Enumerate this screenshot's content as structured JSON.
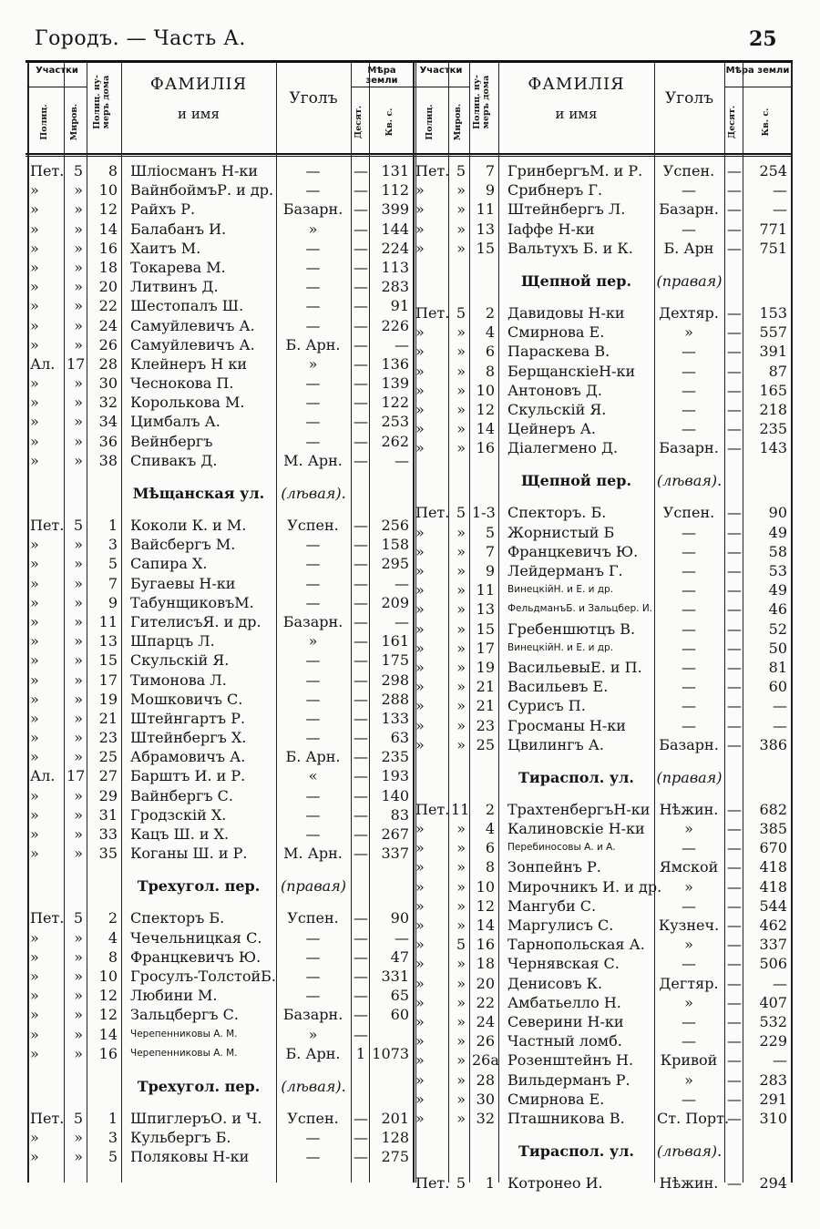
{
  "page": {
    "title": "Городъ. — Часть А.",
    "number": "25"
  },
  "header": {
    "districts": "Участки",
    "police": "Полиц.",
    "court": "Миров.",
    "house_no": "Полиц. ну-\nмеръ дома",
    "name_line1": "ФАМИЛІЯ",
    "name_line2": "и имя",
    "corner": "Уголъ",
    "land": "Мѣра земли",
    "desyat": "Десят.",
    "kv": "Кв. с."
  },
  "left": [
    [
      "Пет.",
      "5",
      "8",
      "Шліосманъ Н-ки",
      "—",
      "—",
      "131"
    ],
    [
      "»",
      "»",
      "10",
      "ВайнбоймъР. и др.",
      "—",
      "—",
      "112"
    ],
    [
      "»",
      "»",
      "12",
      "Райхъ Р.",
      "Базарн.",
      "—",
      "399"
    ],
    [
      "»",
      "»",
      "14",
      "Балабанъ И.",
      "»",
      "—",
      "144"
    ],
    [
      "»",
      "»",
      "16",
      "Хаитъ М.",
      "—",
      "—",
      "224"
    ],
    [
      "»",
      "»",
      "18",
      "Токарева М.",
      "—",
      "—",
      "113"
    ],
    [
      "»",
      "»",
      "20",
      "Литвинъ Д.",
      "—",
      "—",
      "283"
    ],
    [
      "»",
      "»",
      "22",
      "Шестопалъ Ш.",
      "—",
      "—",
      "91"
    ],
    [
      "»",
      "»",
      "24",
      "Самуйлевичъ А.",
      "—",
      "—",
      "226"
    ],
    [
      "»",
      "»",
      "26",
      "Самуйлевичъ А.",
      "Б. Арн.",
      "—",
      "—"
    ],
    [
      "Ал.",
      "17",
      "28",
      "Клейнеръ Н ки",
      "»",
      "—",
      "136"
    ],
    [
      "»",
      "»",
      "30",
      "Чеснокова П.",
      "—",
      "—",
      "139"
    ],
    [
      "»",
      "»",
      "32",
      "Королькова М.",
      "—",
      "—",
      "122"
    ],
    [
      "»",
      "»",
      "34",
      "Цимбалъ А.",
      "—",
      "—",
      "253"
    ],
    [
      "»",
      "»",
      "36",
      "Вейнбергъ",
      "—",
      "—",
      "262"
    ],
    [
      "»",
      "»",
      "38",
      "Спивакъ Д.",
      "М. Арн.",
      "—",
      "—"
    ],
    {
      "street": "Мѣщанская ул.",
      "side": "(лѣвая)."
    },
    [
      "Пет.",
      "5",
      "1",
      "Коколи К. и М.",
      "Успен.",
      "—",
      "256"
    ],
    [
      "»",
      "»",
      "3",
      "Вайсбергъ М.",
      "—",
      "—",
      "158"
    ],
    [
      "»",
      "»",
      "5",
      "Сапира Х.",
      "—",
      "—",
      "295"
    ],
    [
      "»",
      "»",
      "7",
      "Бугаевы Н-ки",
      "—",
      "—",
      "—"
    ],
    [
      "»",
      "»",
      "9",
      "ТабунщиковъМ.",
      "—",
      "—",
      "209"
    ],
    [
      "»",
      "»",
      "11",
      "ГителисъЯ. и др.",
      "Базарн.",
      "—",
      "—"
    ],
    [
      "»",
      "»",
      "13",
      "Шпарцъ Л.",
      "»",
      "—",
      "161"
    ],
    [
      "»",
      "»",
      "15",
      "Скульскій Я.",
      "—",
      "—",
      "175"
    ],
    [
      "»",
      "»",
      "17",
      "Тимонова Л.",
      "—",
      "—",
      "298"
    ],
    [
      "»",
      "»",
      "19",
      "Мошковичъ С.",
      "—",
      "—",
      "288"
    ],
    [
      "»",
      "»",
      "21",
      "Штейнгартъ Р.",
      "—",
      "—",
      "133"
    ],
    [
      "»",
      "»",
      "23",
      "Штейнбергъ Х.",
      "—",
      "—",
      "63"
    ],
    [
      "»",
      "»",
      "25",
      "Абрамовичъ А.",
      "Б. Арн.",
      "—",
      "235"
    ],
    [
      "Ал.",
      "17",
      "27",
      "Барштъ И. и Р.",
      "«",
      "—",
      "193"
    ],
    [
      "»",
      "»",
      "29",
      "Вайнбергъ С.",
      "—",
      "—",
      "140"
    ],
    [
      "»",
      "»",
      "31",
      "Гродзскій Х.",
      "—",
      "—",
      "83"
    ],
    [
      "»",
      "»",
      "33",
      "Кацъ Ш. и Х.",
      "—",
      "—",
      "267"
    ],
    [
      "»",
      "»",
      "35",
      "Коганы Ш. и Р.",
      "М. Арн.",
      "—",
      "337"
    ],
    {
      "street": "Трехугол. пер.",
      "side": "(правая)"
    },
    [
      "Пет.",
      "5",
      "2",
      "Спекторъ Б.",
      "Успен.",
      "—",
      "90"
    ],
    [
      "»",
      "»",
      "4",
      "Чечельницкая С.",
      "—",
      "—",
      "—"
    ],
    [
      "»",
      "»",
      "8",
      "Францкевичъ Ю.",
      "—",
      "—",
      "47"
    ],
    [
      "»",
      "»",
      "10",
      "Гросулъ-ТолстойБ.",
      "—",
      "—",
      "331"
    ],
    [
      "»",
      "»",
      "12",
      "Любини М.",
      "—",
      "—",
      "65"
    ],
    [
      "»",
      "»",
      "12",
      "Зальцбергъ С.",
      "Базарн.",
      "—",
      "60"
    ],
    [
      "»",
      "»",
      "14",
      "Черепенниковы А. М.",
      "»",
      "—",
      ""
    ],
    [
      "»",
      "»",
      "16",
      "Черепенниковы А. М.",
      "Б. Арн.",
      "1",
      "1073"
    ],
    {
      "street": "Трехугол. пер.",
      "side": "(лѣвая)."
    },
    [
      "Пет.",
      "5",
      "1",
      "ШпиглеръО. и Ч.",
      "Успен.",
      "—",
      "201"
    ],
    [
      "»",
      "»",
      "3",
      "Кульбергъ Б.",
      "—",
      "—",
      "128"
    ],
    [
      "»",
      "»",
      "5",
      "Поляковы Н-ки",
      "—",
      "—",
      "275"
    ]
  ],
  "right": [
    [
      "Пет.",
      "5",
      "7",
      "ГринбергъМ. и Р.",
      "Успен.",
      "—",
      "254"
    ],
    [
      "»",
      "»",
      "9",
      "Срибнеръ Г.",
      "—",
      "—",
      "—"
    ],
    [
      "»",
      "»",
      "11",
      "Штейнбергъ Л.",
      "Базарн.",
      "—",
      "—"
    ],
    [
      "»",
      "»",
      "13",
      "Іаффе Н-ки",
      "—",
      "—",
      "771"
    ],
    [
      "»",
      "»",
      "15",
      "Вальтухъ Б. и К.",
      "Б. Арн",
      "—",
      "751"
    ],
    {
      "street": "Щепной пер.",
      "side": "(правая)"
    },
    [
      "Пет.",
      "5",
      "2",
      "Давидовы Н-ки",
      "Дехтяр.",
      "—",
      "153"
    ],
    [
      "»",
      "»",
      "4",
      "Смирнова Е.",
      "»",
      "—",
      "557"
    ],
    [
      "»",
      "»",
      "6",
      "Параскева В.",
      "—",
      "—",
      "391"
    ],
    [
      "»",
      "»",
      "8",
      "БерщанскіеН-ки",
      "—",
      "—",
      "87"
    ],
    [
      "»",
      "»",
      "10",
      "Антоновъ Д.",
      "—",
      "—",
      "165"
    ],
    [
      "»",
      "»",
      "12",
      "Скульскій Я.",
      "—",
      "—",
      "218"
    ],
    [
      "»",
      "»",
      "14",
      "Цейнеръ А.",
      "—",
      "—",
      "235"
    ],
    [
      "»",
      "»",
      "16",
      "Діалегмено Д.",
      "Базарн.",
      "—",
      "143"
    ],
    {
      "street": "Щепной пер.",
      "side": "(лѣвая)."
    },
    [
      "Пет.",
      "5",
      "1-3",
      "Спекторъ. Б.",
      "Успен.",
      "—",
      "90"
    ],
    [
      "»",
      "»",
      "5",
      "Жорнистый Б",
      "—",
      "—",
      "49"
    ],
    [
      "»",
      "»",
      "7",
      "Францкевичъ Ю.",
      "—",
      "—",
      "58"
    ],
    [
      "»",
      "»",
      "9",
      "Лейдерманъ Г.",
      "—",
      "—",
      "53"
    ],
    [
      "»",
      "»",
      "11",
      "ВинецкійН. и Е. и др.",
      "—",
      "—",
      "49"
    ],
    [
      "»",
      "»",
      "13",
      "ФельдманъБ. и Зальцбер. И.",
      "—",
      "—",
      "46"
    ],
    [
      "»",
      "»",
      "15",
      "Гребеншютцъ В.",
      "—",
      "—",
      "52"
    ],
    [
      "»",
      "»",
      "17",
      "ВинецкійН. и Е. и др.",
      "—",
      "—",
      "50"
    ],
    [
      "»",
      "»",
      "19",
      "ВасильевыЕ. и П.",
      "—",
      "—",
      "81"
    ],
    [
      "»",
      "»",
      "21",
      "Васильевъ Е.",
      "—",
      "—",
      "60"
    ],
    [
      "»",
      "»",
      "21",
      "Сурисъ П.",
      "—",
      "—",
      "—"
    ],
    [
      "»",
      "»",
      "23",
      "Гросманы Н-ки",
      "—",
      "—",
      "—"
    ],
    [
      "»",
      "»",
      "25",
      "Цвилингъ А.",
      "Базарн.",
      "—",
      "386"
    ],
    {
      "street": "Тираспол. ул.",
      "side": "(правая)"
    },
    [
      "Пет.",
      "11",
      "2",
      "ТрахтенбергъН-ки",
      "Нѣжин.",
      "—",
      "682"
    ],
    [
      "»",
      "»",
      "4",
      "Калиновскіе Н-ки",
      "»",
      "—",
      "385"
    ],
    [
      "»",
      "»",
      "6",
      "Перебиносовы А. и А.",
      "—",
      "—",
      "670"
    ],
    [
      "»",
      "»",
      "8",
      "Зонпейнъ Р.",
      "Ямской",
      "—",
      "418"
    ],
    [
      "»",
      "»",
      "10",
      "Мирочникъ И. и др.",
      "»",
      "—",
      "418"
    ],
    [
      "»",
      "»",
      "12",
      "Мангуби С.",
      "—",
      "—",
      "544"
    ],
    [
      "»",
      "»",
      "14",
      "Маргулисъ С.",
      "Кузнеч.",
      "—",
      "462"
    ],
    [
      "»",
      "5",
      "16",
      "Тарнопольская А.",
      "»",
      "—",
      "337"
    ],
    [
      "»",
      "»",
      "18",
      "Чернявская С.",
      "—",
      "—",
      "506"
    ],
    [
      "»",
      "»",
      "20",
      "Денисовъ К.",
      "Дегтяр.",
      "—",
      "—"
    ],
    [
      "»",
      "»",
      "22",
      "Амбатьелло Н.",
      "»",
      "—",
      "407"
    ],
    [
      "»",
      "»",
      "24",
      "Северини Н-ки",
      "—",
      "—",
      "532"
    ],
    [
      "»",
      "»",
      "26",
      "Частный ломб.",
      "—",
      "—",
      "229"
    ],
    [
      "»",
      "»",
      "26а",
      "Розенштейнъ Н.",
      "Кривой",
      "—",
      "—"
    ],
    [
      "»",
      "»",
      "28",
      "Вильдерманъ Р.",
      "»",
      "—",
      "283"
    ],
    [
      "»",
      "»",
      "30",
      "Смирнова Е.",
      "—",
      "—",
      "291"
    ],
    [
      "»",
      "»",
      "32",
      "Пташникова В.",
      "Ст. Порт.",
      "—",
      "310"
    ],
    {
      "street": "Тираспол. ул.",
      "side": "(лѣвая)."
    },
    [
      "Пет.",
      "5",
      "1",
      "Котронео И.",
      "Нѣжин.",
      "—",
      "294"
    ]
  ]
}
